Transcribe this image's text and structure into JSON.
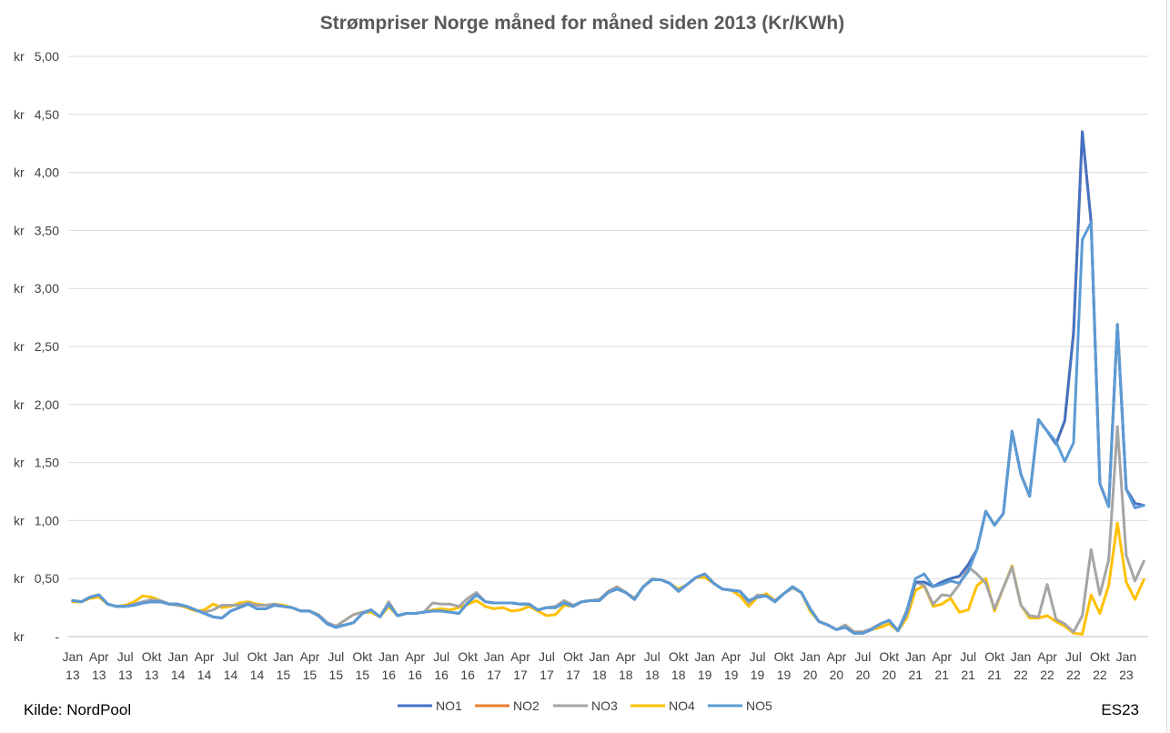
{
  "source": "Kilde: NordPool",
  "signature": "ES23",
  "chart_data": {
    "type": "line",
    "title": "Strømpriser Norge måned for måned siden 2013 (Kr/KWh)",
    "xlabel": "",
    "ylabel": "",
    "ylim": [
      0,
      5
    ],
    "yticks": [
      "kr -",
      "kr 0,50",
      "kr 1,00",
      "kr 1,50",
      "kr 2,00",
      "kr 2,50",
      "kr 3,00",
      "kr 3,50",
      "kr 4,00",
      "kr 4,50",
      "kr 5,00"
    ],
    "xtick_top": [
      "Jan",
      "Apr",
      "Jul",
      "Okt",
      "Jan",
      "Apr",
      "Jul",
      "Okt",
      "Jan",
      "Apr",
      "Jul",
      "Okt",
      "Jan",
      "Apr",
      "Jul",
      "Okt",
      "Jan",
      "Apr",
      "Jul",
      "Okt",
      "Jan",
      "Apr",
      "Jul",
      "Okt",
      "Jan",
      "Apr",
      "Jul",
      "Okt",
      "Jan",
      "Apr",
      "Jul",
      "Okt",
      "Jan",
      "Apr",
      "Jul",
      "Okt",
      "Jan",
      "Apr",
      "Jul",
      "Okt",
      "Jan"
    ],
    "xtick_bottom": [
      "13",
      "13",
      "13",
      "13",
      "14",
      "14",
      "14",
      "14",
      "15",
      "15",
      "15",
      "15",
      "16",
      "16",
      "16",
      "16",
      "17",
      "17",
      "17",
      "17",
      "18",
      "18",
      "18",
      "18",
      "19",
      "19",
      "19",
      "19",
      "20",
      "20",
      "20",
      "20",
      "21",
      "21",
      "21",
      "21",
      "22",
      "22",
      "22",
      "22",
      "23"
    ],
    "grid": true,
    "legend_position": "bottom",
    "x": [
      "2013-01",
      "2013-02",
      "2013-03",
      "2013-04",
      "2013-05",
      "2013-06",
      "2013-07",
      "2013-08",
      "2013-09",
      "2013-10",
      "2013-11",
      "2013-12",
      "2014-01",
      "2014-02",
      "2014-03",
      "2014-04",
      "2014-05",
      "2014-06",
      "2014-07",
      "2014-08",
      "2014-09",
      "2014-10",
      "2014-11",
      "2014-12",
      "2015-01",
      "2015-02",
      "2015-03",
      "2015-04",
      "2015-05",
      "2015-06",
      "2015-07",
      "2015-08",
      "2015-09",
      "2015-10",
      "2015-11",
      "2015-12",
      "2016-01",
      "2016-02",
      "2016-03",
      "2016-04",
      "2016-05",
      "2016-06",
      "2016-07",
      "2016-08",
      "2016-09",
      "2016-10",
      "2016-11",
      "2016-12",
      "2017-01",
      "2017-02",
      "2017-03",
      "2017-04",
      "2017-05",
      "2017-06",
      "2017-07",
      "2017-08",
      "2017-09",
      "2017-10",
      "2017-11",
      "2017-12",
      "2018-01",
      "2018-02",
      "2018-03",
      "2018-04",
      "2018-05",
      "2018-06",
      "2018-07",
      "2018-08",
      "2018-09",
      "2018-10",
      "2018-11",
      "2018-12",
      "2019-01",
      "2019-02",
      "2019-03",
      "2019-04",
      "2019-05",
      "2019-06",
      "2019-07",
      "2019-08",
      "2019-09",
      "2019-10",
      "2019-11",
      "2019-12",
      "2020-01",
      "2020-02",
      "2020-03",
      "2020-04",
      "2020-05",
      "2020-06",
      "2020-07",
      "2020-08",
      "2020-09",
      "2020-10",
      "2020-11",
      "2020-12",
      "2021-01",
      "2021-02",
      "2021-03",
      "2021-04",
      "2021-05",
      "2021-06",
      "2021-07",
      "2021-08",
      "2021-09",
      "2021-10",
      "2021-11",
      "2021-12",
      "2022-01",
      "2022-02",
      "2022-03",
      "2022-04",
      "2022-05",
      "2022-06",
      "2022-07",
      "2022-08",
      "2022-09",
      "2022-10",
      "2022-11",
      "2022-12",
      "2023-01",
      "2023-02",
      "2023-03"
    ],
    "series": [
      {
        "name": "NO1",
        "color": "#4472c4",
        "values": [
          0.31,
          0.3,
          0.34,
          0.36,
          0.28,
          0.26,
          0.26,
          0.27,
          0.29,
          0.3,
          0.3,
          0.28,
          0.28,
          0.26,
          0.23,
          0.2,
          0.17,
          0.16,
          0.22,
          0.25,
          0.28,
          0.24,
          0.24,
          0.27,
          0.26,
          0.25,
          0.22,
          0.22,
          0.18,
          0.11,
          0.08,
          0.1,
          0.12,
          0.2,
          0.23,
          0.17,
          0.28,
          0.18,
          0.2,
          0.2,
          0.21,
          0.22,
          0.22,
          0.21,
          0.2,
          0.29,
          0.36,
          0.3,
          0.29,
          0.29,
          0.29,
          0.28,
          0.28,
          0.23,
          0.25,
          0.25,
          0.29,
          0.26,
          0.3,
          0.31,
          0.31,
          0.38,
          0.41,
          0.38,
          0.32,
          0.43,
          0.49,
          0.49,
          0.46,
          0.39,
          0.45,
          0.51,
          0.54,
          0.46,
          0.41,
          0.4,
          0.39,
          0.31,
          0.34,
          0.35,
          0.3,
          0.37,
          0.43,
          0.38,
          0.24,
          0.13,
          0.1,
          0.06,
          0.08,
          0.03,
          0.03,
          0.06,
          0.11,
          0.14,
          0.05,
          0.22,
          0.47,
          0.47,
          0.43,
          0.47,
          0.5,
          0.52,
          0.62,
          0.75,
          1.08,
          0.96,
          1.06,
          1.77,
          1.4,
          1.21,
          1.87,
          1.77,
          1.66,
          1.86,
          2.62,
          4.35,
          3.57,
          1.32,
          1.12,
          2.69,
          1.27,
          1.15,
          1.13
        ]
      },
      {
        "name": "NO2",
        "color": "#ed7d31",
        "values": [
          0.31,
          0.3,
          0.34,
          0.36,
          0.28,
          0.26,
          0.26,
          0.27,
          0.29,
          0.3,
          0.3,
          0.28,
          0.28,
          0.26,
          0.23,
          0.2,
          0.17,
          0.16,
          0.22,
          0.25,
          0.28,
          0.24,
          0.24,
          0.27,
          0.26,
          0.25,
          0.22,
          0.22,
          0.18,
          0.11,
          0.08,
          0.1,
          0.12,
          0.2,
          0.23,
          0.17,
          0.28,
          0.18,
          0.2,
          0.2,
          0.21,
          0.22,
          0.22,
          0.21,
          0.2,
          0.29,
          0.36,
          0.3,
          0.29,
          0.29,
          0.29,
          0.28,
          0.28,
          0.23,
          0.25,
          0.25,
          0.29,
          0.26,
          0.3,
          0.31,
          0.31,
          0.38,
          0.41,
          0.38,
          0.32,
          0.43,
          0.49,
          0.49,
          0.46,
          0.39,
          0.45,
          0.51,
          0.54,
          0.46,
          0.41,
          0.4,
          0.39,
          0.31,
          0.34,
          0.35,
          0.3,
          0.37,
          0.43,
          0.38,
          0.24,
          0.13,
          0.1,
          0.06,
          0.08,
          0.03,
          0.03,
          0.06,
          0.11,
          0.14,
          0.05,
          0.22,
          0.47,
          0.47,
          0.43,
          0.47,
          0.5,
          0.52,
          0.62,
          0.75,
          1.08,
          0.96,
          1.06,
          1.77,
          1.4,
          1.21,
          1.87,
          1.77,
          1.66,
          1.86,
          2.62,
          4.35,
          3.57,
          1.32,
          1.12,
          2.69,
          1.27,
          1.15,
          1.13
        ]
      },
      {
        "name": "NO3",
        "color": "#a5a5a5",
        "values": [
          0.31,
          0.3,
          0.34,
          0.36,
          0.28,
          0.26,
          0.26,
          0.28,
          0.3,
          0.32,
          0.31,
          0.28,
          0.27,
          0.26,
          0.23,
          0.21,
          0.23,
          0.27,
          0.27,
          0.27,
          0.29,
          0.27,
          0.27,
          0.28,
          0.26,
          0.25,
          0.22,
          0.22,
          0.19,
          0.12,
          0.09,
          0.14,
          0.19,
          0.21,
          0.23,
          0.17,
          0.3,
          0.18,
          0.2,
          0.2,
          0.21,
          0.29,
          0.28,
          0.28,
          0.26,
          0.33,
          0.38,
          0.3,
          0.29,
          0.29,
          0.29,
          0.28,
          0.28,
          0.23,
          0.25,
          0.26,
          0.31,
          0.27,
          0.3,
          0.31,
          0.32,
          0.39,
          0.43,
          0.38,
          0.33,
          0.43,
          0.5,
          0.49,
          0.46,
          0.4,
          0.45,
          0.51,
          0.54,
          0.46,
          0.41,
          0.4,
          0.39,
          0.29,
          0.36,
          0.35,
          0.31,
          0.37,
          0.42,
          0.38,
          0.24,
          0.13,
          0.1,
          0.06,
          0.1,
          0.04,
          0.04,
          0.07,
          0.11,
          0.14,
          0.05,
          0.19,
          0.47,
          0.44,
          0.28,
          0.36,
          0.35,
          0.45,
          0.6,
          0.54,
          0.46,
          0.24,
          0.42,
          0.6,
          0.27,
          0.18,
          0.17,
          0.45,
          0.15,
          0.11,
          0.04,
          0.18,
          0.75,
          0.36,
          0.66,
          1.81,
          0.7,
          0.48,
          0.65
        ]
      },
      {
        "name": "NO4",
        "color": "#ffc000",
        "values": [
          0.3,
          0.3,
          0.33,
          0.34,
          0.28,
          0.26,
          0.27,
          0.3,
          0.35,
          0.34,
          0.31,
          0.28,
          0.27,
          0.25,
          0.22,
          0.23,
          0.28,
          0.25,
          0.26,
          0.29,
          0.3,
          0.28,
          0.27,
          0.28,
          0.27,
          0.25,
          0.22,
          0.22,
          0.18,
          0.11,
          0.09,
          0.14,
          0.19,
          0.21,
          0.21,
          0.17,
          0.26,
          0.18,
          0.2,
          0.2,
          0.21,
          0.23,
          0.24,
          0.23,
          0.25,
          0.28,
          0.31,
          0.26,
          0.24,
          0.25,
          0.22,
          0.23,
          0.26,
          0.22,
          0.18,
          0.19,
          0.27,
          0.26,
          0.3,
          0.31,
          0.32,
          0.38,
          0.43,
          0.38,
          0.33,
          0.43,
          0.49,
          0.49,
          0.46,
          0.41,
          0.45,
          0.51,
          0.51,
          0.46,
          0.41,
          0.4,
          0.35,
          0.26,
          0.34,
          0.37,
          0.31,
          0.37,
          0.42,
          0.38,
          0.22,
          0.13,
          0.1,
          0.06,
          0.1,
          0.04,
          0.04,
          0.06,
          0.08,
          0.11,
          0.05,
          0.16,
          0.4,
          0.44,
          0.26,
          0.28,
          0.33,
          0.21,
          0.23,
          0.44,
          0.5,
          0.22,
          0.42,
          0.61,
          0.27,
          0.16,
          0.16,
          0.18,
          0.13,
          0.09,
          0.03,
          0.02,
          0.36,
          0.2,
          0.44,
          0.98,
          0.47,
          0.32,
          0.49
        ]
      },
      {
        "name": "NO5",
        "color": "#5b9bd5",
        "values": [
          0.31,
          0.3,
          0.34,
          0.36,
          0.28,
          0.26,
          0.26,
          0.27,
          0.29,
          0.3,
          0.3,
          0.28,
          0.28,
          0.26,
          0.23,
          0.2,
          0.17,
          0.16,
          0.22,
          0.25,
          0.28,
          0.24,
          0.24,
          0.27,
          0.26,
          0.25,
          0.22,
          0.22,
          0.18,
          0.11,
          0.08,
          0.1,
          0.12,
          0.2,
          0.23,
          0.17,
          0.28,
          0.18,
          0.2,
          0.2,
          0.21,
          0.22,
          0.22,
          0.21,
          0.2,
          0.29,
          0.36,
          0.3,
          0.29,
          0.29,
          0.29,
          0.28,
          0.28,
          0.23,
          0.25,
          0.25,
          0.29,
          0.26,
          0.3,
          0.31,
          0.31,
          0.38,
          0.41,
          0.38,
          0.32,
          0.43,
          0.49,
          0.49,
          0.46,
          0.39,
          0.45,
          0.51,
          0.54,
          0.46,
          0.41,
          0.4,
          0.39,
          0.31,
          0.34,
          0.35,
          0.3,
          0.37,
          0.43,
          0.38,
          0.24,
          0.13,
          0.1,
          0.06,
          0.08,
          0.03,
          0.03,
          0.06,
          0.11,
          0.14,
          0.05,
          0.22,
          0.5,
          0.54,
          0.43,
          0.45,
          0.48,
          0.46,
          0.56,
          0.75,
          1.08,
          0.96,
          1.06,
          1.77,
          1.4,
          1.21,
          1.87,
          1.77,
          1.68,
          1.51,
          1.67,
          3.42,
          3.57,
          1.32,
          1.12,
          2.69,
          1.27,
          1.11,
          1.13
        ]
      }
    ]
  }
}
